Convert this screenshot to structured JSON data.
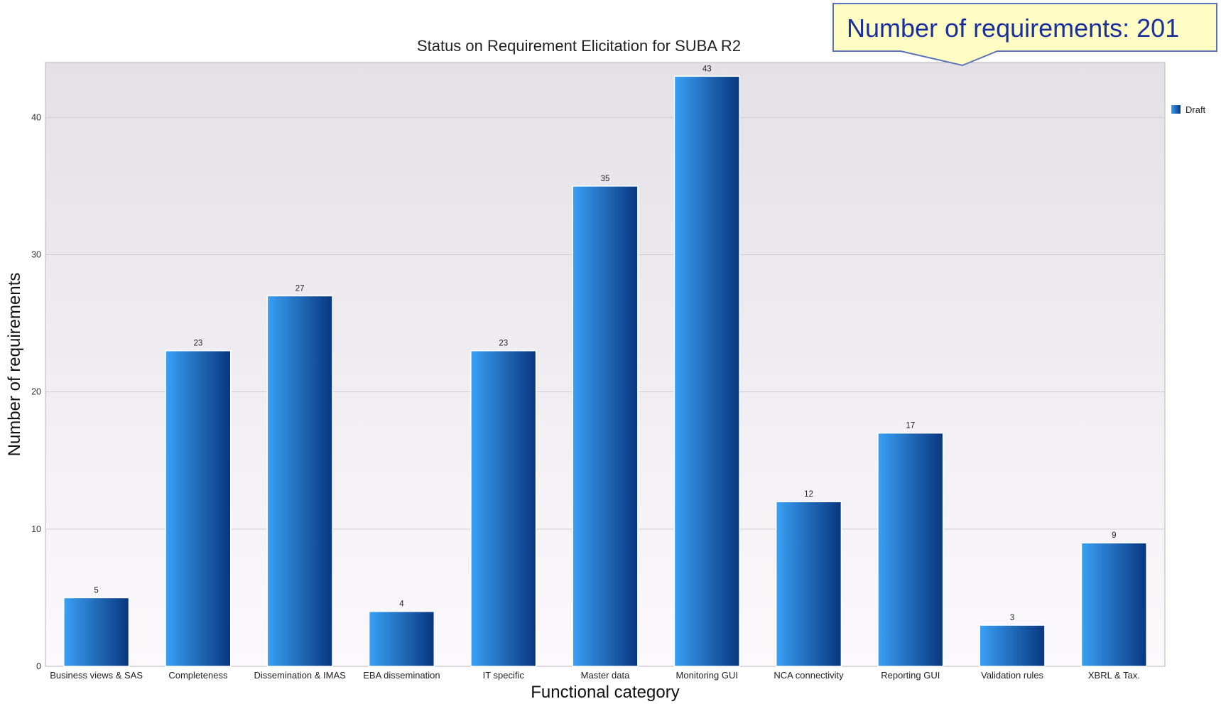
{
  "callout": {
    "text": "Number of requirements: 201"
  },
  "chart_data": {
    "type": "bar",
    "title": "Status on Requirement Elicitation for SUBA R2",
    "xlabel": "Functional category",
    "ylabel": "Number of requirements",
    "ylim": [
      0,
      44
    ],
    "yticks": [
      0,
      10,
      20,
      30,
      40
    ],
    "grid": true,
    "legend_position": "top-right",
    "categories": [
      "Business views & SAS",
      "Completeness",
      "Dissemination & IMAS",
      "EBA dissemination",
      "IT specific",
      "Master data",
      "Monitoring GUI",
      "NCA connectivity",
      "Reporting GUI",
      "Validation rules",
      "XBRL & Tax."
    ],
    "series": [
      {
        "name": "Draft",
        "values": [
          5,
          23,
          27,
          4,
          23,
          35,
          43,
          12,
          17,
          3,
          9
        ],
        "color_light": "#3aa0f5",
        "color_dark": "#08367f"
      }
    ],
    "data_labels": true
  }
}
